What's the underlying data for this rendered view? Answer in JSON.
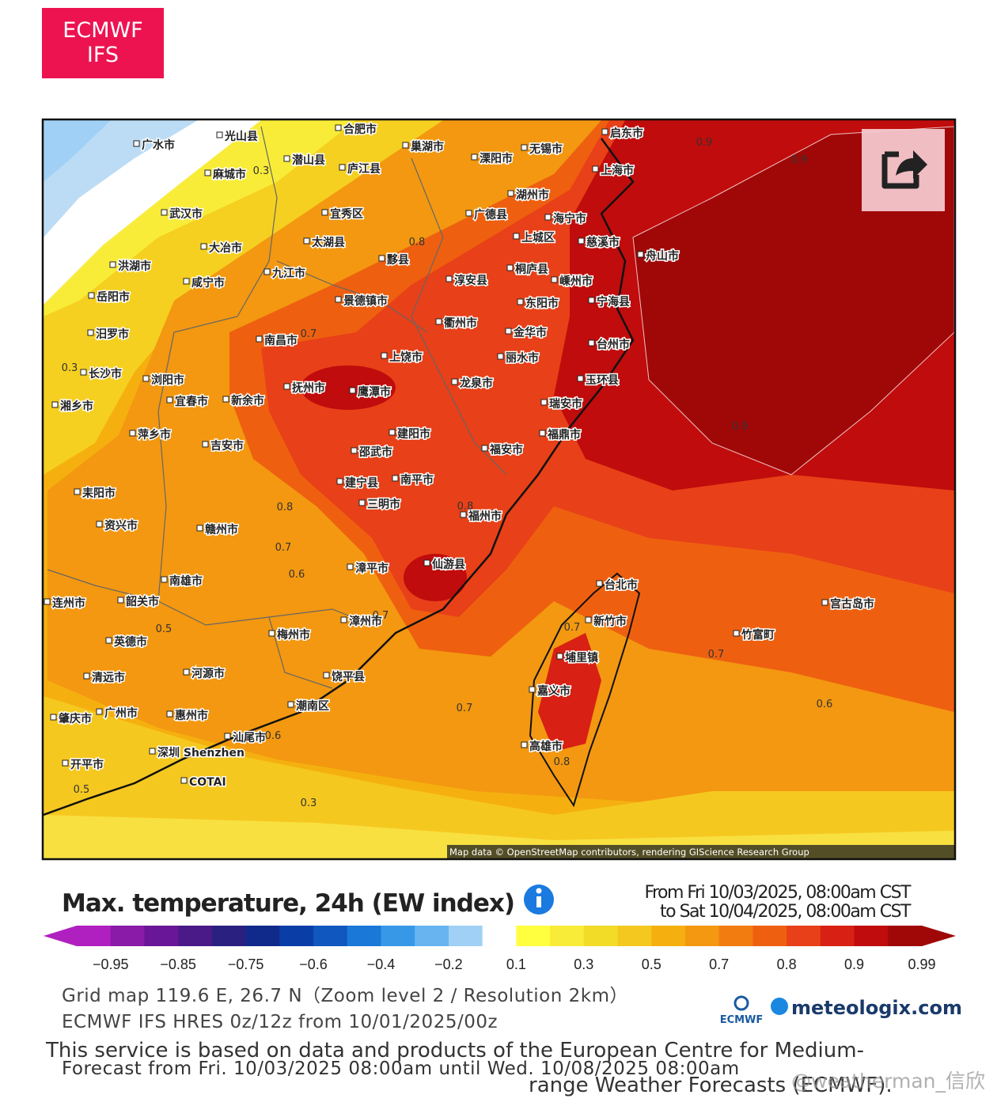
{
  "header": {
    "badge": [
      "ECMWF",
      "IFS"
    ]
  },
  "map": {
    "place_labels": [
      "广水市",
      "光山县",
      "合肥市",
      "巢湖市",
      "潜山县",
      "庐江县",
      "溧阳市",
      "无锡市",
      "启东市",
      "上海市",
      "麻城市",
      "武汉市",
      "湖州市",
      "宜秀区",
      "广德县",
      "海宁市",
      "慈溪市",
      "上城区",
      "舟山市",
      "大冶市",
      "太湖县",
      "黟县",
      "桐庐县",
      "淳安县",
      "嵊州市",
      "宁海县",
      "九江市",
      "咸宁市",
      "洪湖市",
      "景德镇市",
      "东阳市",
      "衢州市",
      "金华市",
      "岳阳市",
      "汨罗市",
      "南昌市",
      "台州市",
      "上饶市",
      "丽水市",
      "长沙市",
      "浏阳市",
      "抚州市",
      "鹰潭市",
      "龙泉市",
      "玉环县",
      "宜春市",
      "新余市",
      "瑞安市",
      "湘乡市",
      "萍乡市",
      "建阳市",
      "福鼎市",
      "吉安市",
      "邵武市",
      "福安市",
      "建宁县",
      "南平市",
      "耒阳市",
      "三明市",
      "福州市",
      "资兴市",
      "赣州市",
      "漳平市",
      "仙游县",
      "南雄市",
      "台北市",
      "新竹市",
      "宫古岛市",
      "韶关市",
      "连州市",
      "漳州市",
      "梅州市",
      "竹富町",
      "英德市",
      "埔里镇",
      "河源市",
      "清远市",
      "饶平县",
      "嘉义市",
      "潮南区",
      "广州市",
      "肇庆市",
      "惠州市",
      "汕尾市",
      "高雄市",
      "深圳 Shenzhen",
      "开平市",
      "COTAI"
    ],
    "contour_labels": [
      "0.3",
      "0.9",
      "0.9",
      "0.8",
      "0.7",
      "0.3",
      "0.9",
      "0.8",
      "0.8",
      "0.7",
      "0.6",
      "0.7",
      "0.5",
      "0.7",
      "0.7",
      "0.7",
      "0.6",
      "0.6",
      "0.8",
      "0.5",
      "0.3"
    ],
    "attribution": "Map data © OpenStreetMap contributors, rendering GIScience Research Group"
  },
  "legend": {
    "title": "Max. temperature, 24h (EW index)",
    "period": [
      "From Fri 10/03/2025, 08:00am CST",
      "to Sat 10/04/2025, 08:00am CST"
    ],
    "colors": [
      "#b020c0",
      "#8a1aa8",
      "#6a1698",
      "#4a1a88",
      "#2a2080",
      "#102a8c",
      "#0a3ea6",
      "#1058c0",
      "#1a78d8",
      "#3898e8",
      "#68b4f0",
      "#a0d0f5",
      "#ffffff",
      "#ffff40",
      "#f8ec38",
      "#f2dc28",
      "#f5c820",
      "#f5b010",
      "#f39810",
      "#f27c10",
      "#ee6010",
      "#e84018",
      "#d82014",
      "#c00c0c",
      "#a00808"
    ],
    "ticks": [
      "−0.95",
      "−0.85",
      "−0.75",
      "−0.6",
      "−0.4",
      "−0.2",
      "0.1",
      "0.3",
      "0.5",
      "0.7",
      "0.8",
      "0.9",
      "0.99"
    ]
  },
  "footer": {
    "grid": "Grid map 119.6 E, 26.7 N（Zoom level 2 / Resolution 2km）",
    "model": "ECMWF IFS HRES 0z/12z from 10/01/2025/00z",
    "service": [
      "This service is based on data and products of the European Centre for Medium-",
      "range Weather Forecasts (ECMWF)."
    ],
    "forecast": "Forecast from Fri. 10/03/2025 08:00am until Wed. 10/08/2025 08:00am",
    "logos": [
      "ECMWF",
      "meteologix.com"
    ],
    "watermark": "@weatherman_信欣"
  }
}
